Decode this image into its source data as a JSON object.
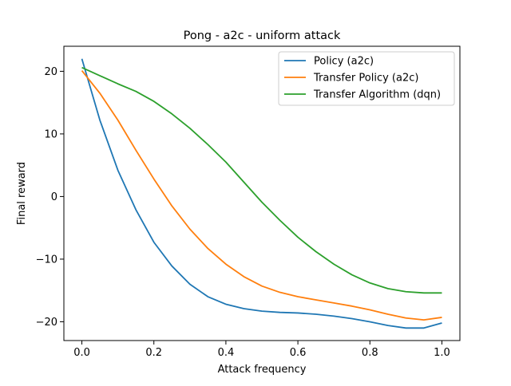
{
  "chart_data": {
    "type": "line",
    "title": "Pong - a2c - uniform attack",
    "xlabel": "Attack frequency",
    "ylabel": "Final reward",
    "xlim": [
      -0.05,
      1.05
    ],
    "ylim": [
      -23.0,
      24.0
    ],
    "xticks": [
      0.0,
      0.2,
      0.4,
      0.6,
      0.8,
      1.0
    ],
    "xtick_labels": [
      "0.0",
      "0.2",
      "0.4",
      "0.6",
      "0.8",
      "1.0"
    ],
    "yticks": [
      -20,
      -10,
      0,
      10,
      20
    ],
    "ytick_labels": [
      "−20",
      "−10",
      "0",
      "10",
      "20"
    ],
    "grid": false,
    "legend_position": "top-right",
    "x": [
      0.0,
      0.05,
      0.1,
      0.15,
      0.2,
      0.25,
      0.3,
      0.35,
      0.4,
      0.45,
      0.5,
      0.55,
      0.6,
      0.65,
      0.7,
      0.75,
      0.8,
      0.85,
      0.9,
      0.95,
      1.0
    ],
    "series": [
      {
        "name": "Policy (a2c)",
        "color": "#1f77b4",
        "values": [
          22.0,
          12.2,
          4.2,
          -2.1,
          -7.3,
          -11.1,
          -14.0,
          -16.0,
          -17.2,
          -17.9,
          -18.3,
          -18.5,
          -18.6,
          -18.8,
          -19.1,
          -19.5,
          -20.0,
          -20.6,
          -21.0,
          -21.0,
          -20.2
        ]
      },
      {
        "name": "Transfer Policy (a2c)",
        "color": "#ff7f0e",
        "values": [
          20.1,
          16.5,
          12.2,
          7.4,
          2.8,
          -1.5,
          -5.2,
          -8.3,
          -10.8,
          -12.8,
          -14.3,
          -15.3,
          -16.0,
          -16.5,
          -17.0,
          -17.5,
          -18.1,
          -18.8,
          -19.4,
          -19.7,
          -19.3
        ]
      },
      {
        "name": "Transfer Algorithm (dqn)",
        "color": "#2ca02c",
        "values": [
          20.6,
          19.3,
          18.0,
          16.8,
          15.2,
          13.2,
          10.9,
          8.3,
          5.5,
          2.3,
          -0.9,
          -3.8,
          -6.5,
          -8.8,
          -10.8,
          -12.5,
          -13.8,
          -14.7,
          -15.2,
          -15.4,
          -15.4
        ]
      }
    ]
  }
}
